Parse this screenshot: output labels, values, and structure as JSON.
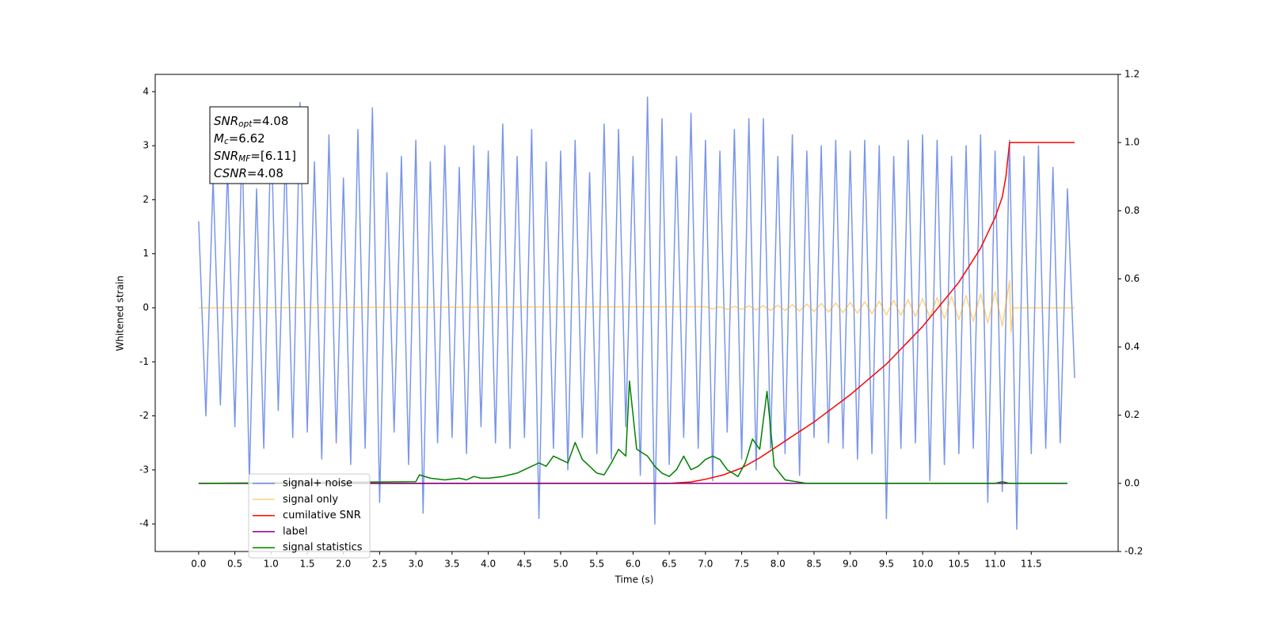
{
  "chart_data": {
    "type": "line",
    "xlabel": "Time (s)",
    "ylabel": "Whitened strain",
    "xlim": [
      -0.6,
      12.7
    ],
    "ylim": [
      -4.51,
      4.32
    ],
    "y2lim": [
      -0.2,
      1.2
    ],
    "xticks": [
      {
        "value": 0,
        "label": "0.0"
      },
      0.5,
      {
        "value": 1,
        "label": "1.0"
      },
      1.5,
      {
        "value": 2,
        "label": "2.0"
      },
      2.5,
      {
        "value": 3,
        "label": "3.0"
      },
      3.5,
      {
        "value": 4,
        "label": "4.0"
      },
      4.5,
      {
        "value": 5,
        "label": "5.0"
      },
      5.5,
      {
        "value": 6,
        "label": "6.0"
      },
      6.5,
      {
        "value": 7,
        "label": "7.0"
      },
      7.5,
      {
        "value": 8,
        "label": "8.0"
      },
      8.5,
      {
        "value": 9,
        "label": "9.0"
      },
      9.5,
      {
        "value": 10,
        "label": "10.0"
      },
      10.5,
      {
        "value": 11,
        "label": "11.0"
      },
      11.5
    ],
    "yticks": [
      -4,
      -3,
      -2,
      -1,
      0,
      1,
      2,
      3,
      4
    ],
    "y2ticks": [
      -0.2,
      {
        "value": 0,
        "label": "0.0"
      },
      0.2,
      0.4,
      0.6,
      0.8,
      {
        "value": 1,
        "label": "1.0"
      },
      1.2
    ],
    "legend": "lower left",
    "annotation": [
      {
        "math": "SNR",
        "sub": "opt",
        "text": "=4.08"
      },
      {
        "math": "M",
        "sub": "c",
        "text": "=6.62"
      },
      {
        "math": "SNR",
        "sub": "MF",
        "text": "=[6.11]"
      },
      {
        "math": "CSNR",
        "text": "=4.08"
      }
    ],
    "series": [
      {
        "name": "signal+ noise",
        "color": "#4169e1",
        "x": [
          0,
          0.1,
          0.2,
          0.3,
          0.4,
          0.5,
          0.6,
          0.7,
          0.8,
          0.9,
          1,
          1.1,
          1.2,
          1.3,
          1.4,
          1.5,
          1.6,
          1.7,
          1.8,
          1.9,
          2,
          2.1,
          2.2,
          2.3,
          2.4,
          2.5,
          2.6,
          2.7,
          2.8,
          2.9,
          3,
          3.1,
          3.2,
          3.3,
          3.4,
          3.5,
          3.6,
          3.7,
          3.8,
          3.9,
          4,
          4.1,
          4.2,
          4.3,
          4.4,
          4.5,
          4.6,
          4.7,
          4.8,
          4.9,
          5,
          5.1,
          5.2,
          5.3,
          5.4,
          5.5,
          5.6,
          5.7,
          5.8,
          5.9,
          6,
          6.1,
          6.2,
          6.3,
          6.4,
          6.5,
          6.6,
          6.7,
          6.8,
          6.9,
          7,
          7.1,
          7.2,
          7.3,
          7.4,
          7.5,
          7.6,
          7.7,
          7.8,
          7.9,
          8,
          8.1,
          8.2,
          8.3,
          8.4,
          8.5,
          8.6,
          8.7,
          8.8,
          8.9,
          9,
          9.1,
          9.2,
          9.3,
          9.4,
          9.5,
          9.6,
          9.7,
          9.8,
          9.9,
          10,
          10.1,
          10.2,
          10.3,
          10.4,
          10.5,
          10.6,
          10.7,
          10.8,
          10.9,
          11,
          11.1,
          11.2,
          11.3,
          11.4,
          11.5,
          11.6,
          11.7,
          11.8,
          11.9,
          12,
          12.1
        ],
        "values": [
          1.6,
          -2.0,
          2.4,
          -1.8,
          2.6,
          -2.2,
          3.1,
          -3.2,
          2.2,
          -2.6,
          3.4,
          -1.9,
          2.9,
          -2.4,
          3.8,
          -2.3,
          2.7,
          -2.8,
          3.2,
          -2.5,
          2.4,
          -2.9,
          3.3,
          -2.6,
          3.7,
          -3.6,
          2.5,
          -2.3,
          2.8,
          -2.9,
          3.1,
          -3.8,
          2.7,
          -2.5,
          3.0,
          -2.4,
          2.6,
          -2.7,
          3.0,
          -2.2,
          2.9,
          -2.5,
          3.4,
          -2.6,
          2.8,
          -2.4,
          3.3,
          -3.9,
          2.7,
          -2.6,
          2.9,
          -3.0,
          3.1,
          -2.4,
          2.5,
          -2.7,
          3.4,
          -2.8,
          3.3,
          -2.2,
          2.8,
          -3.1,
          3.9,
          -4.0,
          3.5,
          -2.9,
          2.8,
          -2.4,
          3.6,
          -2.6,
          3.1,
          -3.2,
          2.9,
          -2.3,
          3.3,
          -2.8,
          3.5,
          -3.0,
          3.5,
          -2.6,
          2.8,
          -2.7,
          3.2,
          -3.1,
          2.9,
          -2.4,
          3.0,
          -2.5,
          3.1,
          -2.6,
          2.9,
          -2.8,
          3.1,
          -2.7,
          3.0,
          -3.9,
          2.8,
          -2.6,
          3.1,
          -2.5,
          3.2,
          -3.2,
          3.1,
          -2.9,
          2.8,
          -2.7,
          3.0,
          -2.6,
          3.2,
          -3.6,
          2.9,
          -3.4,
          3.1,
          -4.1,
          2.8,
          -2.7,
          3.0,
          -2.6,
          2.6,
          -2.5,
          2.2,
          -1.3
        ]
      },
      {
        "name": "signal only",
        "color": "#ffa500",
        "x": [
          0,
          7.0,
          7.1,
          7.2,
          7.3,
          7.4,
          7.5,
          7.6,
          7.7,
          7.8,
          7.9,
          8.0,
          8.1,
          8.2,
          8.3,
          8.4,
          8.5,
          8.6,
          8.7,
          8.8,
          8.9,
          9.0,
          9.1,
          9.2,
          9.3,
          9.4,
          9.5,
          9.6,
          9.7,
          9.8,
          9.9,
          10.0,
          10.1,
          10.2,
          10.3,
          10.4,
          10.5,
          10.6,
          10.7,
          10.8,
          10.9,
          11.0,
          11.1,
          11.2,
          11.22,
          11.25,
          12.1
        ],
        "values": [
          0,
          0.02,
          -0.02,
          0.02,
          -0.03,
          0.03,
          -0.03,
          0.04,
          -0.04,
          0.04,
          -0.05,
          0.05,
          -0.05,
          0.06,
          -0.06,
          0.07,
          -0.07,
          0.08,
          -0.08,
          0.09,
          -0.09,
          0.1,
          -0.1,
          0.11,
          -0.11,
          0.12,
          -0.13,
          0.14,
          -0.14,
          0.15,
          -0.16,
          0.17,
          -0.18,
          0.19,
          -0.2,
          0.21,
          -0.22,
          0.23,
          -0.25,
          0.26,
          -0.28,
          0.3,
          -0.34,
          0.5,
          -0.45,
          0,
          0
        ]
      },
      {
        "name": "cumilative SNR",
        "color": "#ff0000",
        "axis": "y2",
        "x": [
          0,
          6.5,
          6.8,
          7.0,
          7.25,
          7.5,
          7.75,
          8.0,
          8.25,
          8.5,
          9.0,
          9.5,
          10.0,
          10.5,
          10.8,
          11.0,
          11.1,
          11.15,
          11.2,
          12.1
        ],
        "values": [
          0,
          0,
          0.004,
          0.012,
          0.025,
          0.045,
          0.075,
          0.11,
          0.145,
          0.18,
          0.26,
          0.35,
          0.46,
          0.59,
          0.69,
          0.78,
          0.84,
          0.9,
          1.0,
          1.0
        ]
      },
      {
        "name": "label",
        "color": "#800080",
        "axis": "y2",
        "x": [
          0,
          11.99
        ],
        "values": [
          0,
          0
        ]
      },
      {
        "name": "signal statistics",
        "color": "#008000",
        "axis": "y2",
        "x": [
          0,
          3.0,
          3.05,
          3.2,
          3.4,
          3.6,
          3.7,
          3.8,
          3.9,
          4.0,
          4.2,
          4.4,
          4.5,
          4.6,
          4.7,
          4.8,
          4.9,
          5.0,
          5.1,
          5.2,
          5.3,
          5.4,
          5.5,
          5.6,
          5.7,
          5.8,
          5.9,
          5.95,
          6.05,
          6.2,
          6.3,
          6.4,
          6.5,
          6.6,
          6.7,
          6.8,
          6.9,
          7.0,
          7.1,
          7.2,
          7.3,
          7.45,
          7.55,
          7.65,
          7.75,
          7.85,
          7.95,
          8.1,
          8.4,
          11.0,
          11.1,
          11.2,
          12.0
        ],
        "values": [
          0,
          0.005,
          0.025,
          0.015,
          0.01,
          0.015,
          0.01,
          0.02,
          0.015,
          0.015,
          0.02,
          0.03,
          0.04,
          0.05,
          0.06,
          0.05,
          0.08,
          0.07,
          0.06,
          0.12,
          0.07,
          0.05,
          0.03,
          0.025,
          0.06,
          0.1,
          0.08,
          0.3,
          0.1,
          0.08,
          0.05,
          0.03,
          0.02,
          0.04,
          0.08,
          0.04,
          0.05,
          0.07,
          0.08,
          0.07,
          0.04,
          0.02,
          0.06,
          0.13,
          0.1,
          0.27,
          0.05,
          0.01,
          0,
          0,
          0.005,
          0,
          0
        ]
      }
    ]
  }
}
